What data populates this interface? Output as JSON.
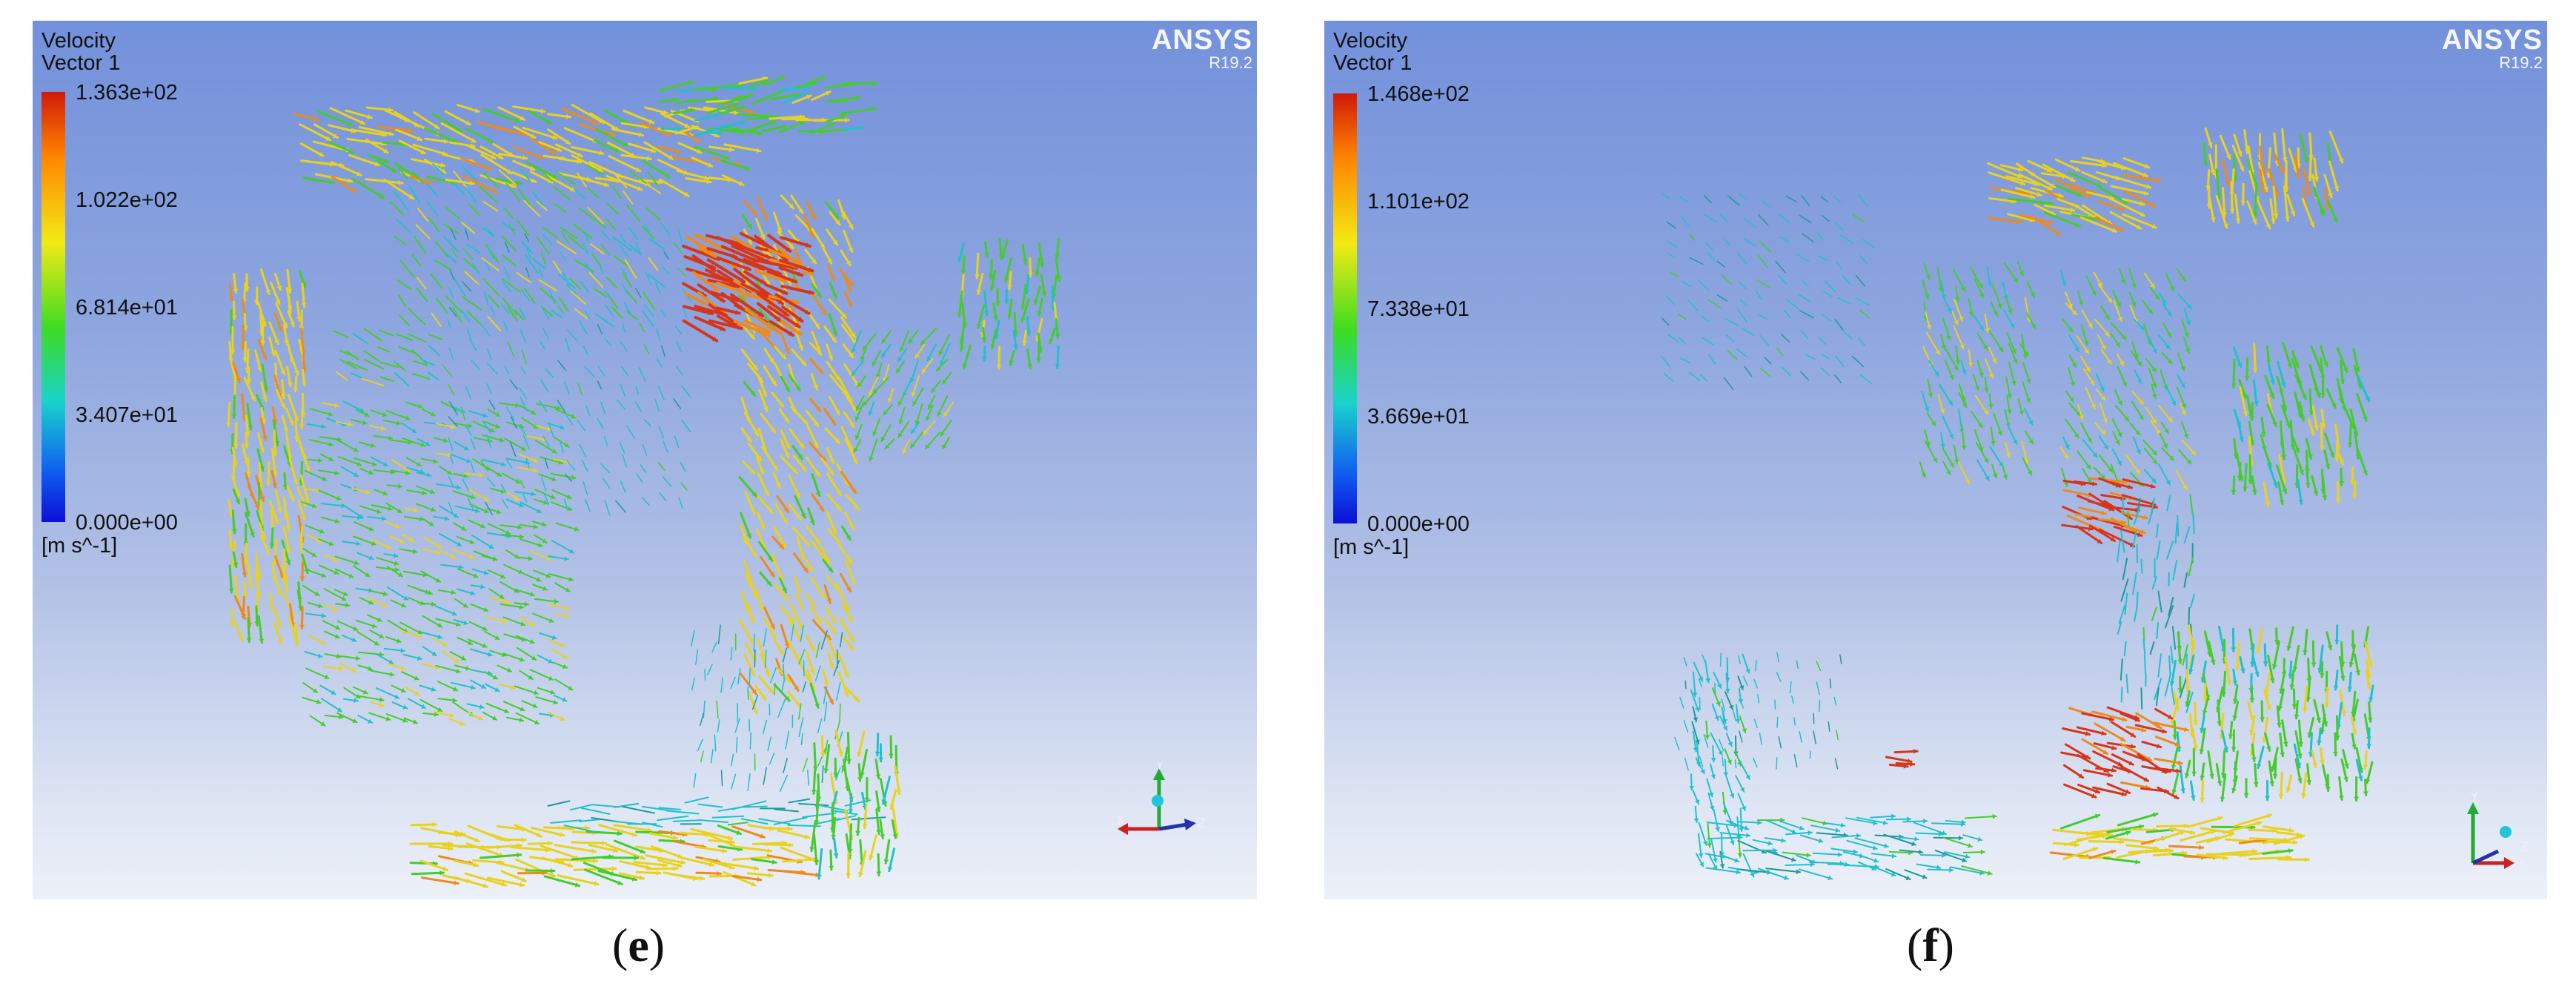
{
  "panels": [
    {
      "title_line1": "Velocity",
      "title_line2": "Vector 1",
      "brand_name": "ANSYS",
      "brand_version": "R19.2",
      "legend_ticks": [
        "1.363e+02",
        "1.022e+02",
        "6.814e+01",
        "3.407e+01",
        "0.000e+00"
      ],
      "legend_unit": "[m s^-1]",
      "axis_labels": {
        "x": "X",
        "y": "Y",
        "z": "Z"
      },
      "caption_letter": "e"
    },
    {
      "title_line1": "Velocity",
      "title_line2": "Vector 1",
      "brand_name": "ANSYS",
      "brand_version": "R19.2",
      "legend_ticks": [
        "1.468e+02",
        "1.101e+02",
        "7.338e+01",
        "3.669e+01",
        "0.000e+00"
      ],
      "legend_unit": "[m s^-1]",
      "axis_labels": {
        "x": "X",
        "y": "Y",
        "z": "Z"
      },
      "caption_letter": "f"
    }
  ],
  "colors": {
    "red": "#d8341a",
    "orange": "#ee8a1a",
    "yellow": "#e8d21e",
    "green": "#45cc2c",
    "cyan": "#22c0cc",
    "teal": "#1f9a9a"
  }
}
